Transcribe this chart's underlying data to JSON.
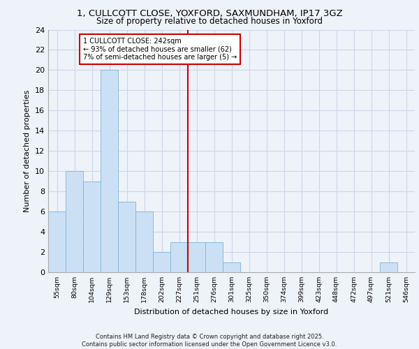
{
  "title_line1": "1, CULLCOTT CLOSE, YOXFORD, SAXMUNDHAM, IP17 3GZ",
  "title_line2": "Size of property relative to detached houses in Yoxford",
  "xlabel": "Distribution of detached houses by size in Yoxford",
  "ylabel": "Number of detached properties",
  "bar_labels": [
    "55sqm",
    "80sqm",
    "104sqm",
    "129sqm",
    "153sqm",
    "178sqm",
    "202sqm",
    "227sqm",
    "251sqm",
    "276sqm",
    "301sqm",
    "325sqm",
    "350sqm",
    "374sqm",
    "399sqm",
    "423sqm",
    "448sqm",
    "472sqm",
    "497sqm",
    "521sqm",
    "546sqm"
  ],
  "bar_values": [
    6,
    10,
    9,
    20,
    7,
    6,
    2,
    3,
    3,
    3,
    1,
    0,
    0,
    0,
    0,
    0,
    0,
    0,
    0,
    1,
    0
  ],
  "bar_color": "#cce0f5",
  "bar_edge_color": "#7ab4d8",
  "grid_color": "#ccd6e8",
  "vline_x": 7.5,
  "vline_color": "#cc0000",
  "annotation_text": "1 CULLCOTT CLOSE: 242sqm\n← 93% of detached houses are smaller (62)\n7% of semi-detached houses are larger (5) →",
  "annotation_box_color": "#ffffff",
  "annotation_box_edge": "#cc0000",
  "ylim": [
    0,
    24
  ],
  "yticks": [
    0,
    2,
    4,
    6,
    8,
    10,
    12,
    14,
    16,
    18,
    20,
    22,
    24
  ],
  "footer": "Contains HM Land Registry data © Crown copyright and database right 2025.\nContains public sector information licensed under the Open Government Licence v3.0.",
  "bg_color": "#eef2f9"
}
